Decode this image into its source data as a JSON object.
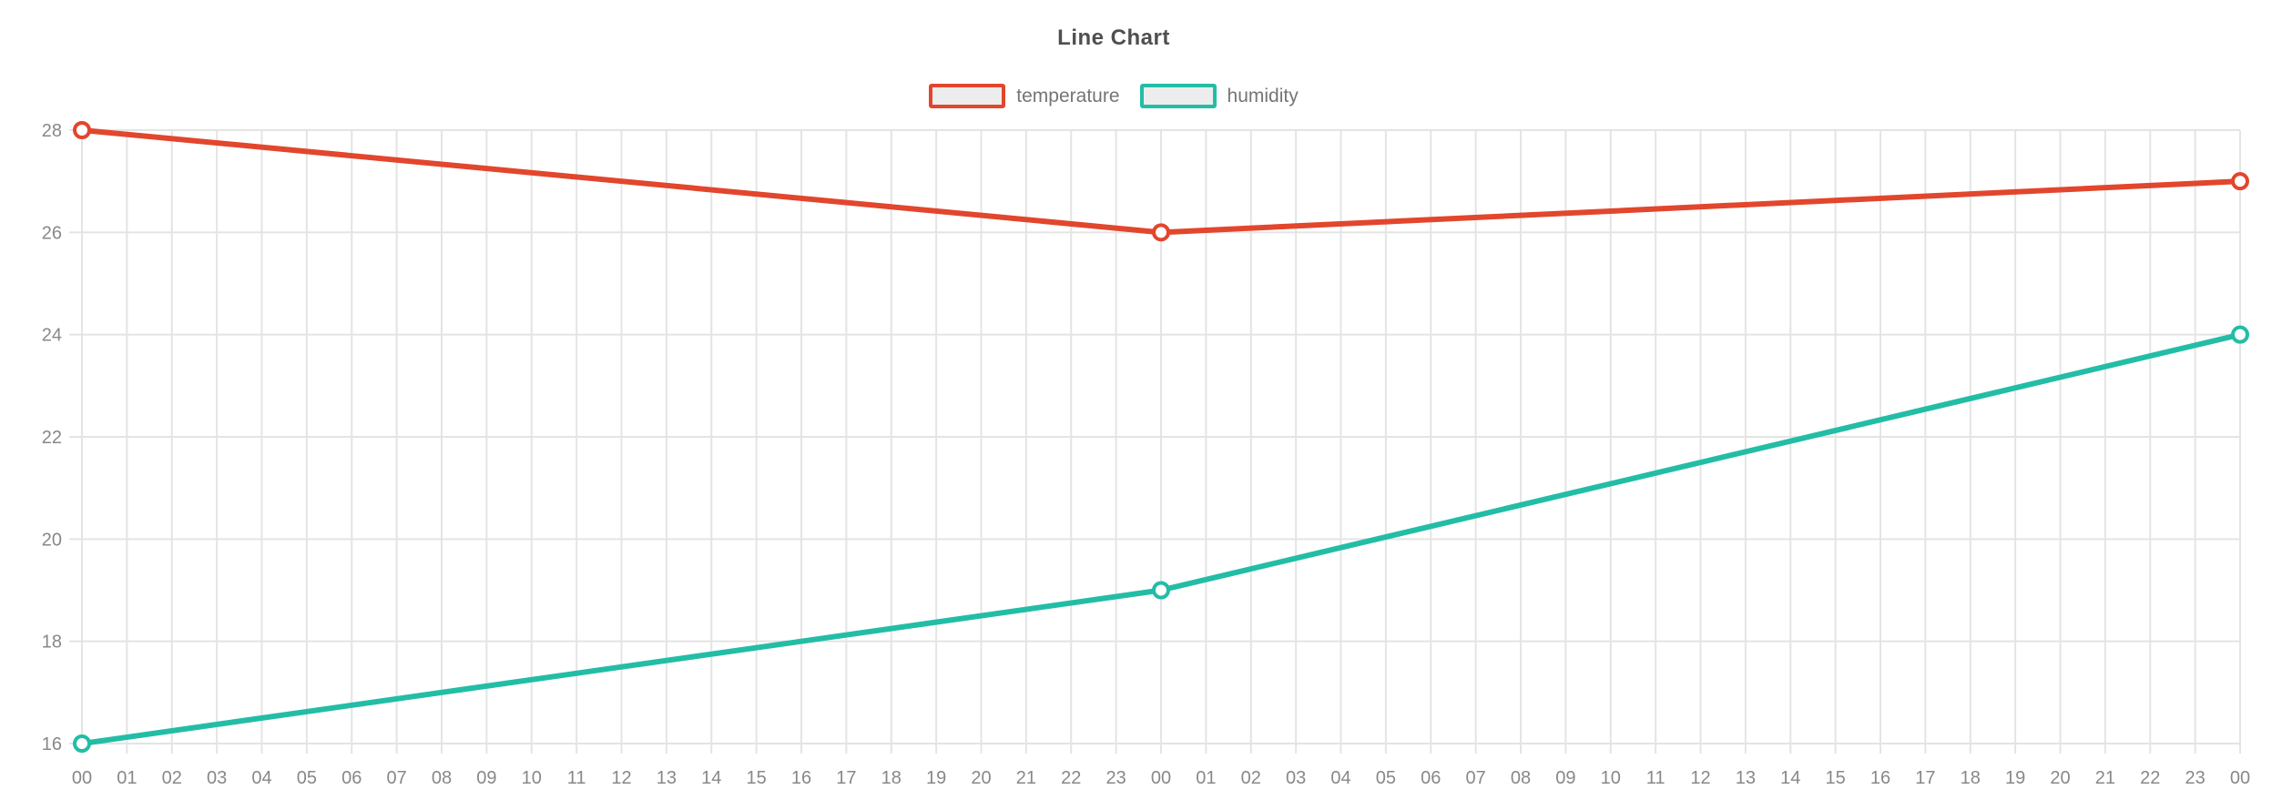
{
  "chart_data": {
    "type": "line",
    "title": "Line Chart",
    "x_labels": [
      "00",
      "01",
      "02",
      "03",
      "04",
      "05",
      "06",
      "07",
      "08",
      "09",
      "10",
      "11",
      "12",
      "13",
      "14",
      "15",
      "16",
      "17",
      "18",
      "19",
      "20",
      "21",
      "22",
      "23",
      "00",
      "01",
      "02",
      "03",
      "04",
      "05",
      "06",
      "07",
      "08",
      "09",
      "10",
      "11",
      "12",
      "13",
      "14",
      "15",
      "16",
      "17",
      "18",
      "19",
      "20",
      "21",
      "22",
      "23",
      "00"
    ],
    "y_ticks": [
      28,
      26,
      24,
      22,
      20,
      18,
      16
    ],
    "ylim": [
      16,
      28
    ],
    "grid": "both",
    "legend_position": "top-center",
    "series": [
      {
        "name": "temperature",
        "color": "#e2462d",
        "points": [
          {
            "x": 0,
            "y": 28
          },
          {
            "x": 24,
            "y": 26
          },
          {
            "x": 48,
            "y": 27
          }
        ]
      },
      {
        "name": "humidity",
        "color": "#23bda6",
        "points": [
          {
            "x": 0,
            "y": 16
          },
          {
            "x": 24,
            "y": 19
          },
          {
            "x": 48,
            "y": 24
          }
        ]
      }
    ]
  },
  "colors": {
    "background": "#ffffff",
    "gridline": "#e4e4e4",
    "axis_text": "#888888",
    "title_text": "#4f4f4f",
    "legend_text": "#757575",
    "legend_swatch_fill": "#ededed",
    "marker_fill": "#ffffff"
  }
}
